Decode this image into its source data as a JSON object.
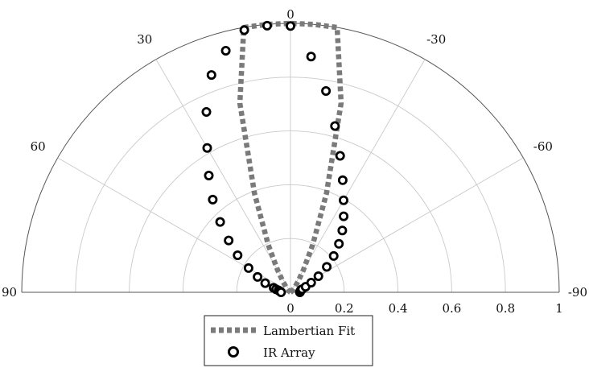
{
  "chart_data": {
    "type": "scatter",
    "coordinate_system": "polar-half",
    "angle_unit": "degrees",
    "radial_range": [
      0,
      1
    ],
    "angle_range": [
      -90,
      90
    ],
    "angle_ticks": [
      {
        "value": 0,
        "label": "0"
      },
      {
        "value": 30,
        "label": "30"
      },
      {
        "value": -30,
        "label": "-30"
      },
      {
        "value": 60,
        "label": "60"
      },
      {
        "value": -60,
        "label": "-60"
      },
      {
        "value": 90,
        "label": "90"
      },
      {
        "value": -90,
        "label": "-90"
      }
    ],
    "radial_ticks": [
      {
        "value": 0,
        "label": "0"
      },
      {
        "value": 0.2,
        "label": "0.2"
      },
      {
        "value": 0.4,
        "label": "0.4"
      },
      {
        "value": 0.6,
        "label": "0.6"
      },
      {
        "value": 0.8,
        "label": "0.8"
      },
      {
        "value": 1,
        "label": "1"
      }
    ],
    "grid": true,
    "legend_position": "bottom-center",
    "series": [
      {
        "name": "Lambertian Fit",
        "style": "dashed-line",
        "color": "#7a7a7a",
        "angle": [
          -90,
          -85,
          -80,
          -75,
          -70,
          -65,
          -60,
          -55,
          -50,
          -45,
          -40,
          -35,
          -30,
          -25,
          -20,
          -15,
          -10,
          -5,
          0,
          5,
          10,
          15,
          20,
          25,
          30,
          35,
          40,
          45,
          50,
          55,
          60,
          65,
          70,
          75,
          80,
          85,
          90
        ],
        "r": [
          0.0,
          0.0,
          0.0,
          0.0,
          0.0,
          0.0,
          0.001,
          0.002,
          0.005,
          0.012,
          0.024,
          0.049,
          0.097,
          0.196,
          0.391,
          0.728,
          1.0,
          1.0,
          1.0,
          1.0,
          1.0,
          0.728,
          0.391,
          0.196,
          0.097,
          0.049,
          0.024,
          0.012,
          0.005,
          0.002,
          0.001,
          0.0,
          0.0,
          0.0,
          0.0,
          0.0,
          0.0
        ]
      },
      {
        "name": "IR Array",
        "style": "open-circle",
        "color": "#000000",
        "angle": [
          -90,
          -87,
          -84,
          -81,
          -78,
          -75,
          -70,
          -65,
          -60,
          -55,
          -50,
          -45,
          -40,
          -35,
          -30,
          -25,
          -20,
          -15,
          -10,
          -5,
          0,
          5,
          10,
          15,
          20,
          25,
          30,
          35,
          40,
          45,
          50,
          55,
          60,
          65,
          70,
          75,
          78,
          81,
          84,
          87,
          90
        ],
        "r": [
          0.035,
          0.036,
          0.037,
          0.038,
          0.04,
          0.045,
          0.06,
          0.085,
          0.12,
          0.165,
          0.21,
          0.255,
          0.3,
          0.345,
          0.395,
          0.46,
          0.54,
          0.64,
          0.76,
          0.88,
          0.99,
          0.995,
          0.99,
          0.93,
          0.86,
          0.74,
          0.62,
          0.53,
          0.45,
          0.37,
          0.3,
          0.24,
          0.18,
          0.135,
          0.1,
          0.065,
          0.055,
          0.045,
          0.04,
          0.037,
          0.035
        ]
      }
    ]
  }
}
